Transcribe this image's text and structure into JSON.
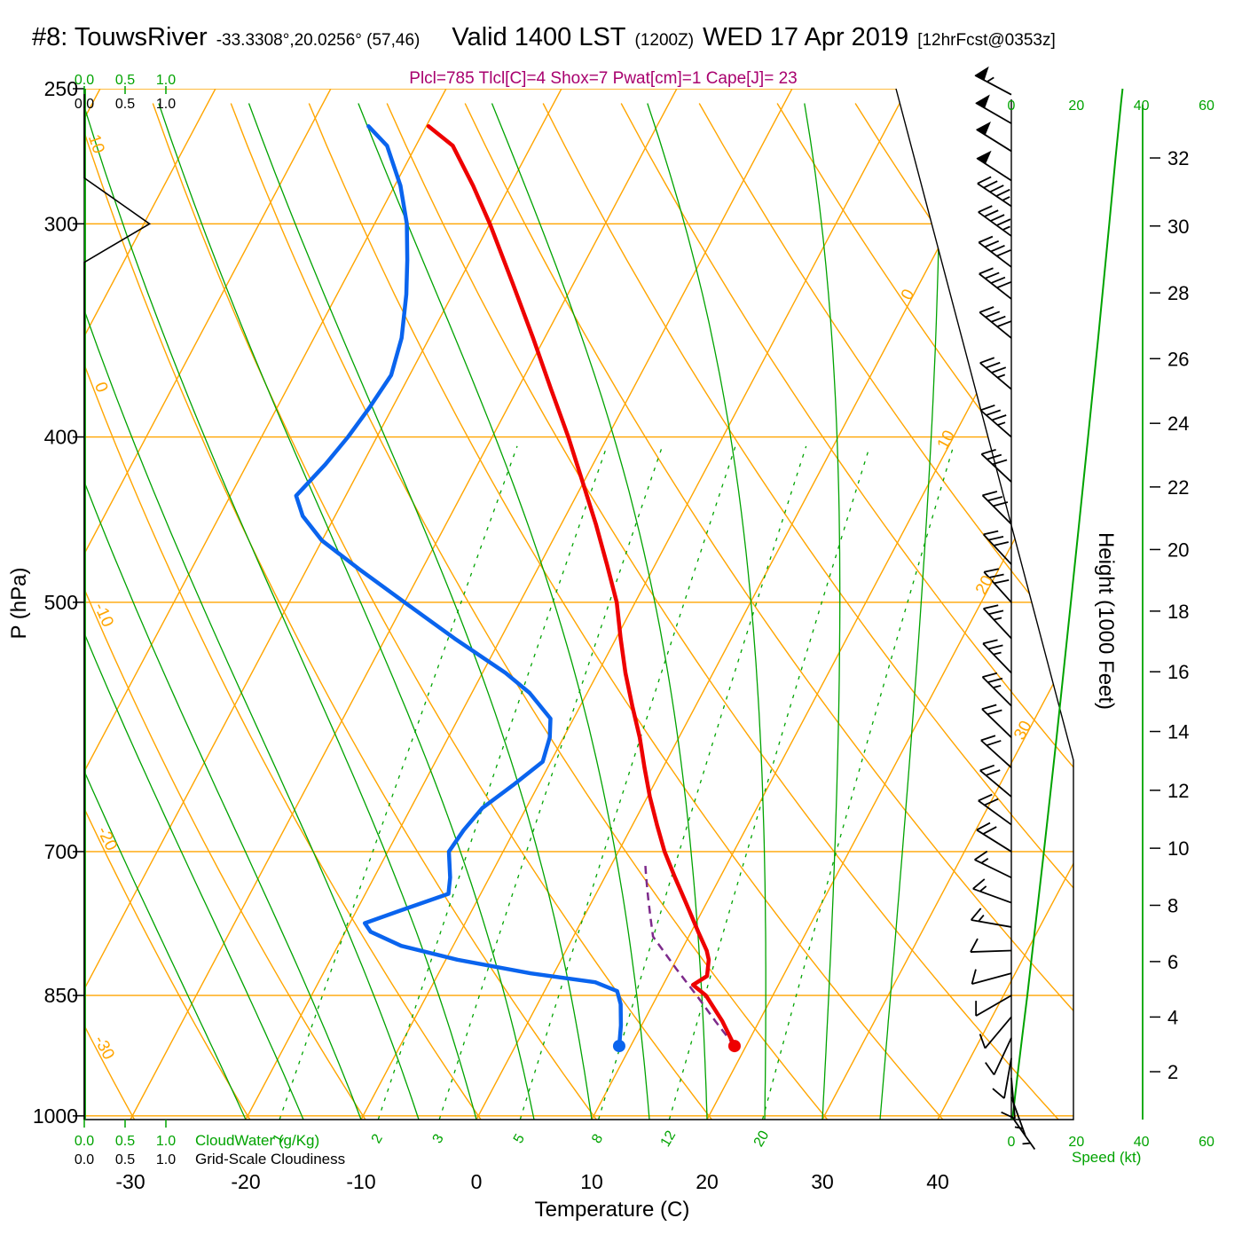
{
  "header": {
    "station": "#8: TouwsRiver",
    "coords": "-33.3308°,20.0256° (57,46)",
    "valid": "Valid 1400 LST",
    "valid_z": "(1200Z)",
    "date": "WED 17 Apr 2019",
    "fcst": "[12hrFcst@0353z]",
    "indices": "Plcl=785 Tlcl[C]=4 Shox=7 Pwat[cm]=1 Cape[J]= 23"
  },
  "axes": {
    "pressure_label": "P (hPa)",
    "temperature_label": "Temperature (C)",
    "height_label": "Height (1000 Feet)",
    "speed_label": "Speed (kt)",
    "cloudwater_label": "CloudWater (g/Kg)",
    "cloudiness_label": "Grid-Scale Cloudiness",
    "pressure_ticks": [
      250,
      300,
      400,
      500,
      700,
      850,
      1000
    ],
    "temperature_ticks": [
      -30,
      -20,
      -10,
      0,
      10,
      20,
      30,
      40
    ],
    "height_ticks": [
      2,
      4,
      6,
      8,
      10,
      12,
      14,
      16,
      18,
      20,
      22,
      24,
      26,
      28,
      30,
      32
    ],
    "speed_ticks": [
      0,
      20,
      40,
      60
    ],
    "cloud_scale_ticks": [
      "0.0",
      "0.5",
      "1.0"
    ]
  },
  "chart_data": {
    "type": "skewt-sounding",
    "ylim_hpa": [
      1005,
      250
    ],
    "xlim_c_at_surface": [
      -34,
      52
    ],
    "isotherm_labels": [
      0,
      10,
      20,
      30
    ],
    "dry_adiabat_labels": [
      10,
      0,
      -10,
      -20,
      -30
    ],
    "mixing_ratio_lines": [
      1,
      2,
      3,
      5,
      8,
      12,
      20
    ],
    "surface_temp": [
      910,
      19.0
    ],
    "surface_dewpoint": [
      910,
      9.0
    ],
    "temperature_c": [
      [
        910,
        19.0
      ],
      [
        880,
        16.8
      ],
      [
        850,
        14.2
      ],
      [
        838,
        12.6
      ],
      [
        828,
        13.4
      ],
      [
        810,
        12.8
      ],
      [
        800,
        12.2
      ],
      [
        780,
        10.6
      ],
      [
        750,
        8.2
      ],
      [
        725,
        6.1
      ],
      [
        700,
        4.0
      ],
      [
        675,
        2.1
      ],
      [
        650,
        0.2
      ],
      [
        625,
        -1.6
      ],
      [
        600,
        -3.4
      ],
      [
        575,
        -5.5
      ],
      [
        550,
        -7.6
      ],
      [
        525,
        -9.6
      ],
      [
        500,
        -11.6
      ],
      [
        475,
        -14.2
      ],
      [
        450,
        -17.0
      ],
      [
        425,
        -20.1
      ],
      [
        400,
        -23.4
      ],
      [
        375,
        -27.1
      ],
      [
        350,
        -31.0
      ],
      [
        325,
        -35.3
      ],
      [
        300,
        -40.0
      ],
      [
        285,
        -43.2
      ],
      [
        270,
        -46.8
      ],
      [
        263,
        -49.8
      ]
    ],
    "dewpoint_c": [
      [
        910,
        9.0
      ],
      [
        885,
        8.2
      ],
      [
        860,
        7.2
      ],
      [
        845,
        6.3
      ],
      [
        835,
        4.0
      ],
      [
        825,
        -2.0
      ],
      [
        810,
        -9.0
      ],
      [
        795,
        -14.5
      ],
      [
        780,
        -17.8
      ],
      [
        771,
        -18.7
      ],
      [
        758,
        -16.2
      ],
      [
        741,
        -12.8
      ],
      [
        725,
        -13.4
      ],
      [
        700,
        -14.7
      ],
      [
        680,
        -14.4
      ],
      [
        660,
        -13.8
      ],
      [
        640,
        -12.2
      ],
      [
        620,
        -10.7
      ],
      [
        600,
        -11.2
      ],
      [
        585,
        -12.0
      ],
      [
        565,
        -15.0
      ],
      [
        550,
        -18.0
      ],
      [
        525,
        -24.0
      ],
      [
        500,
        -30.0
      ],
      [
        478,
        -35.5
      ],
      [
        460,
        -40.0
      ],
      [
        445,
        -42.8
      ],
      [
        433,
        -44.3
      ],
      [
        415,
        -43.2
      ],
      [
        400,
        -42.5
      ],
      [
        385,
        -42.0
      ],
      [
        368,
        -41.6
      ],
      [
        350,
        -42.4
      ],
      [
        330,
        -44.0
      ],
      [
        315,
        -45.5
      ],
      [
        300,
        -47.2
      ],
      [
        285,
        -49.5
      ],
      [
        270,
        -52.5
      ],
      [
        263,
        -55.0
      ]
    ],
    "parcel_c": [
      [
        910,
        19.0
      ],
      [
        880,
        16.2
      ],
      [
        850,
        13.4
      ],
      [
        820,
        10.4
      ],
      [
        785,
        6.9
      ],
      [
        765,
        5.8
      ],
      [
        745,
        4.7
      ],
      [
        725,
        3.6
      ],
      [
        710,
        2.8
      ]
    ],
    "winds_p_dir_kt": [
      [
        1000,
        145,
        4
      ],
      [
        975,
        160,
        6
      ],
      [
        950,
        175,
        8
      ],
      [
        925,
        190,
        8
      ],
      [
        900,
        205,
        8
      ],
      [
        875,
        220,
        10
      ],
      [
        850,
        240,
        10
      ],
      [
        825,
        255,
        12
      ],
      [
        800,
        268,
        12
      ],
      [
        775,
        280,
        14
      ],
      [
        750,
        290,
        15
      ],
      [
        725,
        296,
        16
      ],
      [
        700,
        302,
        18
      ],
      [
        675,
        306,
        18
      ],
      [
        650,
        310,
        20
      ],
      [
        625,
        312,
        20
      ],
      [
        600,
        314,
        22
      ],
      [
        575,
        315,
        24
      ],
      [
        550,
        316,
        25
      ],
      [
        525,
        317,
        26
      ],
      [
        500,
        318,
        28
      ],
      [
        475,
        317,
        30
      ],
      [
        450,
        315,
        30
      ],
      [
        425,
        313,
        32
      ],
      [
        400,
        311,
        34
      ],
      [
        375,
        310,
        36
      ],
      [
        350,
        309,
        38
      ],
      [
        332,
        308,
        40
      ],
      [
        318,
        307,
        42
      ],
      [
        305,
        306,
        44
      ],
      [
        293,
        304,
        46
      ],
      [
        283,
        303,
        48
      ],
      [
        272,
        302,
        50
      ],
      [
        262,
        300,
        52
      ],
      [
        252,
        298,
        55
      ]
    ],
    "heights_kft": [
      [
        1005,
        0.3
      ],
      [
        950,
        1.8
      ],
      [
        900,
        3.3
      ],
      [
        850,
        4.9
      ],
      [
        800,
        6.5
      ],
      [
        750,
        8.2
      ],
      [
        700,
        10.0
      ],
      [
        650,
        11.9
      ],
      [
        600,
        13.9
      ],
      [
        550,
        16.0
      ],
      [
        500,
        18.3
      ],
      [
        450,
        20.8
      ],
      [
        400,
        23.6
      ],
      [
        350,
        26.7
      ],
      [
        300,
        30.1
      ],
      [
        275,
        32.0
      ],
      [
        255,
        33.7
      ],
      [
        250,
        34.2
      ]
    ],
    "cloudiness_frac": [
      [
        250,
        0
      ],
      [
        282,
        0
      ],
      [
        300,
        0.8
      ],
      [
        316,
        0
      ],
      [
        400,
        0
      ],
      [
        1005,
        0
      ]
    ],
    "cloudwater_gkg": [
      [
        250,
        0
      ],
      [
        1005,
        0
      ]
    ],
    "colors": {
      "grid_orange": "#FFA500",
      "green": "#00A300",
      "temperature_red": "#EE0000",
      "dewpoint_blue": "#0A64EE",
      "parcel_purple": "#7D2A8B",
      "indices_magenta": "#A8006E"
    }
  }
}
